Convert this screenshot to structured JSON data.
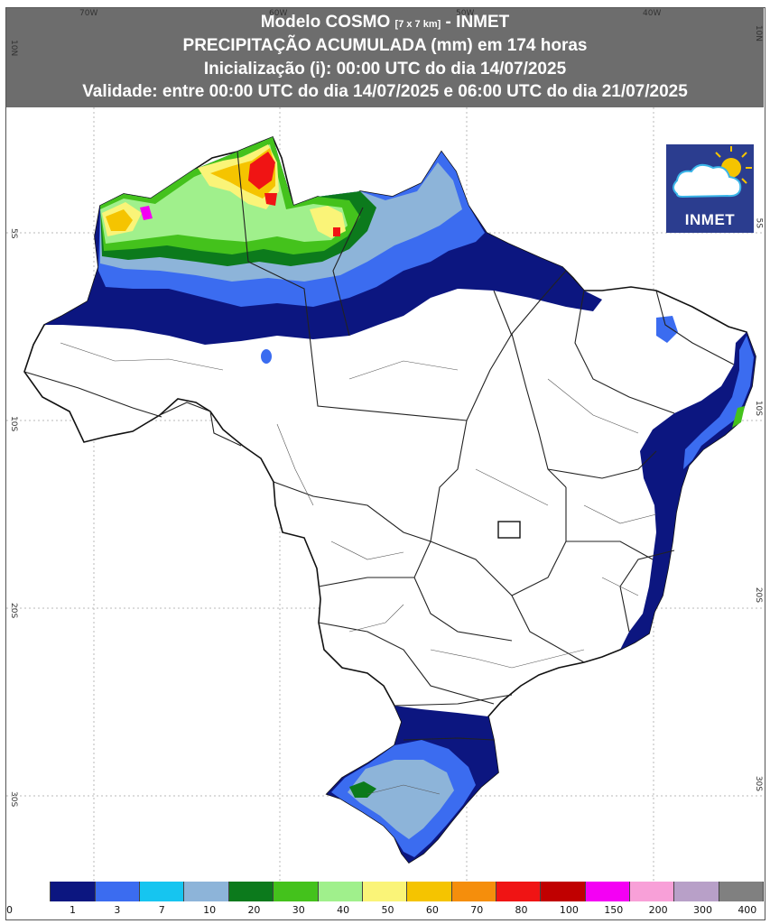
{
  "header": {
    "line1_a": "Modelo COSMO ",
    "line1_small": "[7 x 7 km]",
    "line1_b": " - INMET",
    "line2": "PRECIPITAÇÃO ACUMULADA (mm) em 174 horas",
    "line3": "Inicialização (i): 00:00 UTC do dia 14/07/2025",
    "line4": "Validade: entre 00:00 UTC do dia 14/07/2025 e 06:00 UTC do dia 21/07/2025"
  },
  "axes": {
    "lon_ticks": [
      "70W",
      "60W",
      "50W",
      "40W"
    ],
    "lat_ticks": [
      "10N",
      "5S",
      "10S",
      "20S",
      "30S"
    ],
    "lat_ticks_right": [
      "10N",
      "5S",
      "10S",
      "20S",
      "30S"
    ]
  },
  "logo": {
    "text": "INMET",
    "icon": "sun-cloud-icon"
  },
  "legend": {
    "labels": [
      "0",
      "1",
      "3",
      "7",
      "10",
      "20",
      "30",
      "40",
      "50",
      "60",
      "70",
      "80",
      "100",
      "150",
      "200",
      "300",
      "400"
    ],
    "colors": [
      "#ffffff",
      "#0c1680",
      "#3b6cf0",
      "#16c5f0",
      "#8db4d9",
      "#0c7a1c",
      "#44c21c",
      "#a0f08c",
      "#faf478",
      "#f5c400",
      "#f58e0c",
      "#f01414",
      "#c00000",
      "#f400f4",
      "#f8a0d8",
      "#b8a0c8",
      "#808080"
    ]
  },
  "colors": {
    "header_bg": "#6d6d6d",
    "logo_bg": "#2b3d8f"
  }
}
